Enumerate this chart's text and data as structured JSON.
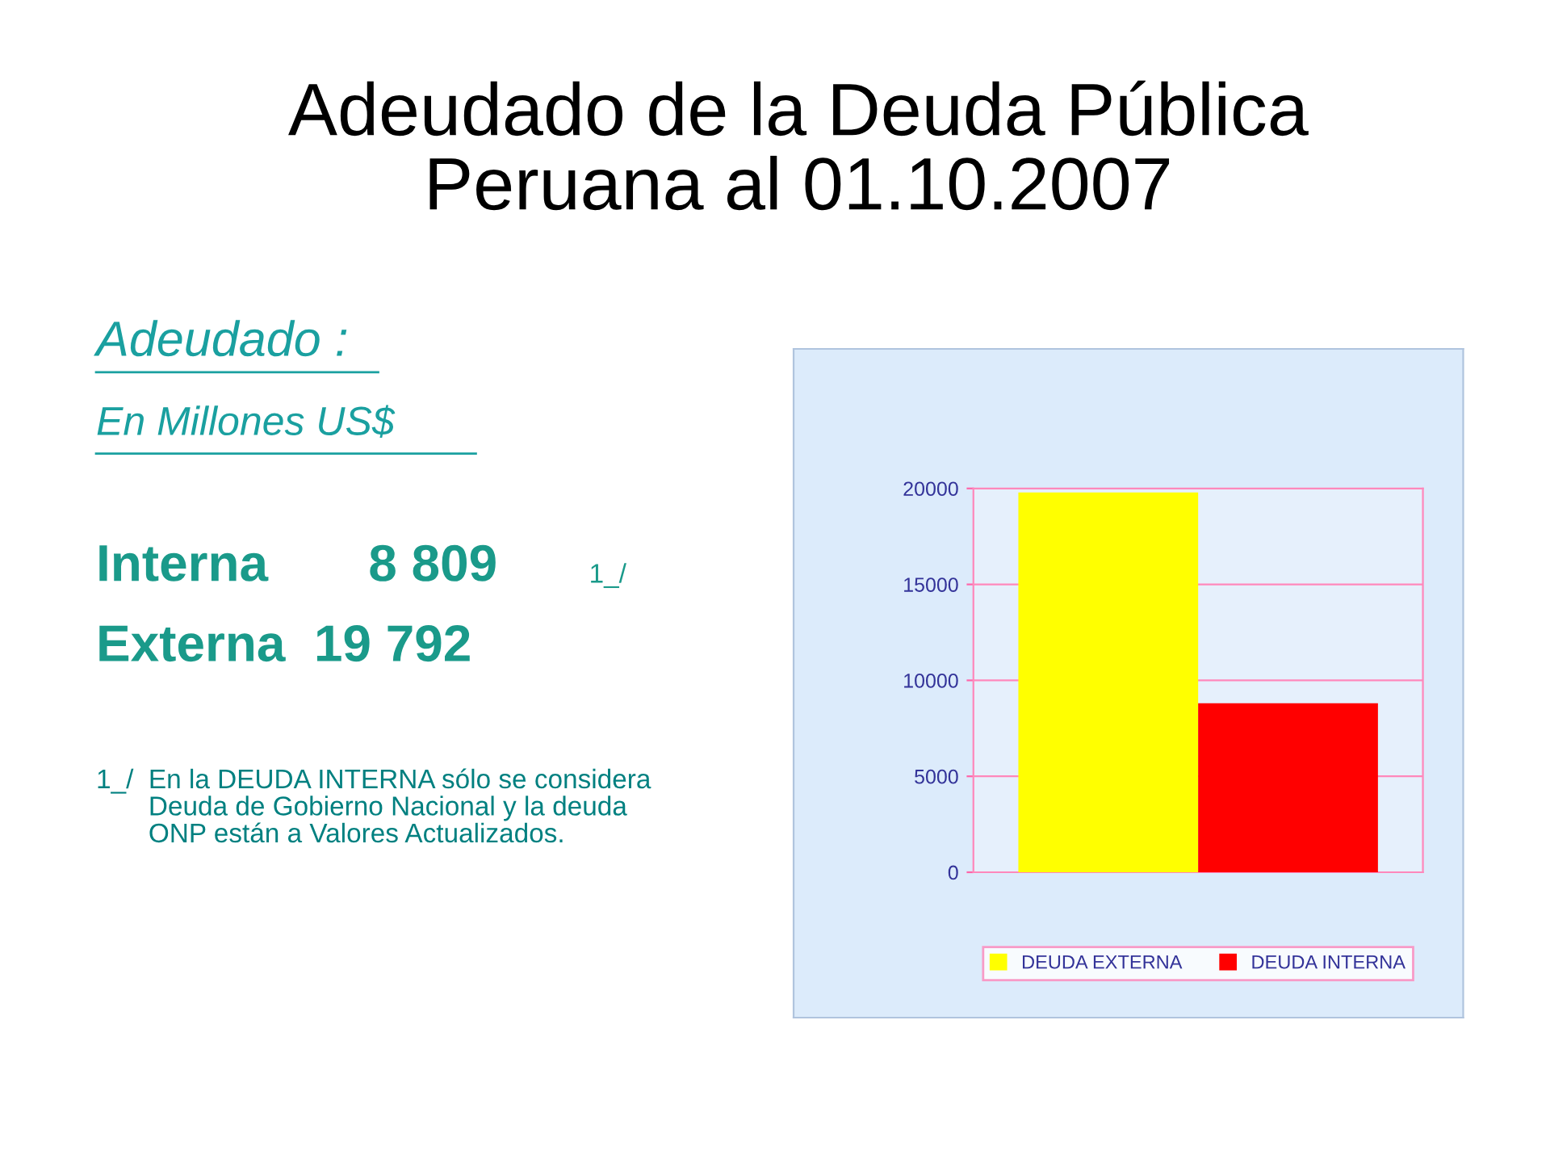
{
  "chart_data": {
    "type": "bar",
    "title": "Adeudado de la Deuda Pública\nPeruana al 01.10.2007",
    "categories": [
      null
    ],
    "series": [
      {
        "name": "DEUDA EXTERNA",
        "color": "#ffff00",
        "values": [
          19792
        ]
      },
      {
        "name": "DEUDA INTERNA",
        "color": "#ff0000",
        "values": [
          8809
        ]
      }
    ],
    "ylim": [
      0,
      20000
    ],
    "yticks": [
      0,
      5000,
      10000,
      15000,
      20000
    ],
    "grid": "y",
    "legend": "bottom",
    "annotations": [
      "Adeudado :",
      "En Millones US$",
      "Interna       8 809",
      "1_/",
      "Externa  19 792",
      "1_/  En la DEUDA INTERNA sólo se considera\n       Deuda de Gobierno Nacional y la deuda\n       ONP están a Valores Actualizados."
    ]
  }
}
